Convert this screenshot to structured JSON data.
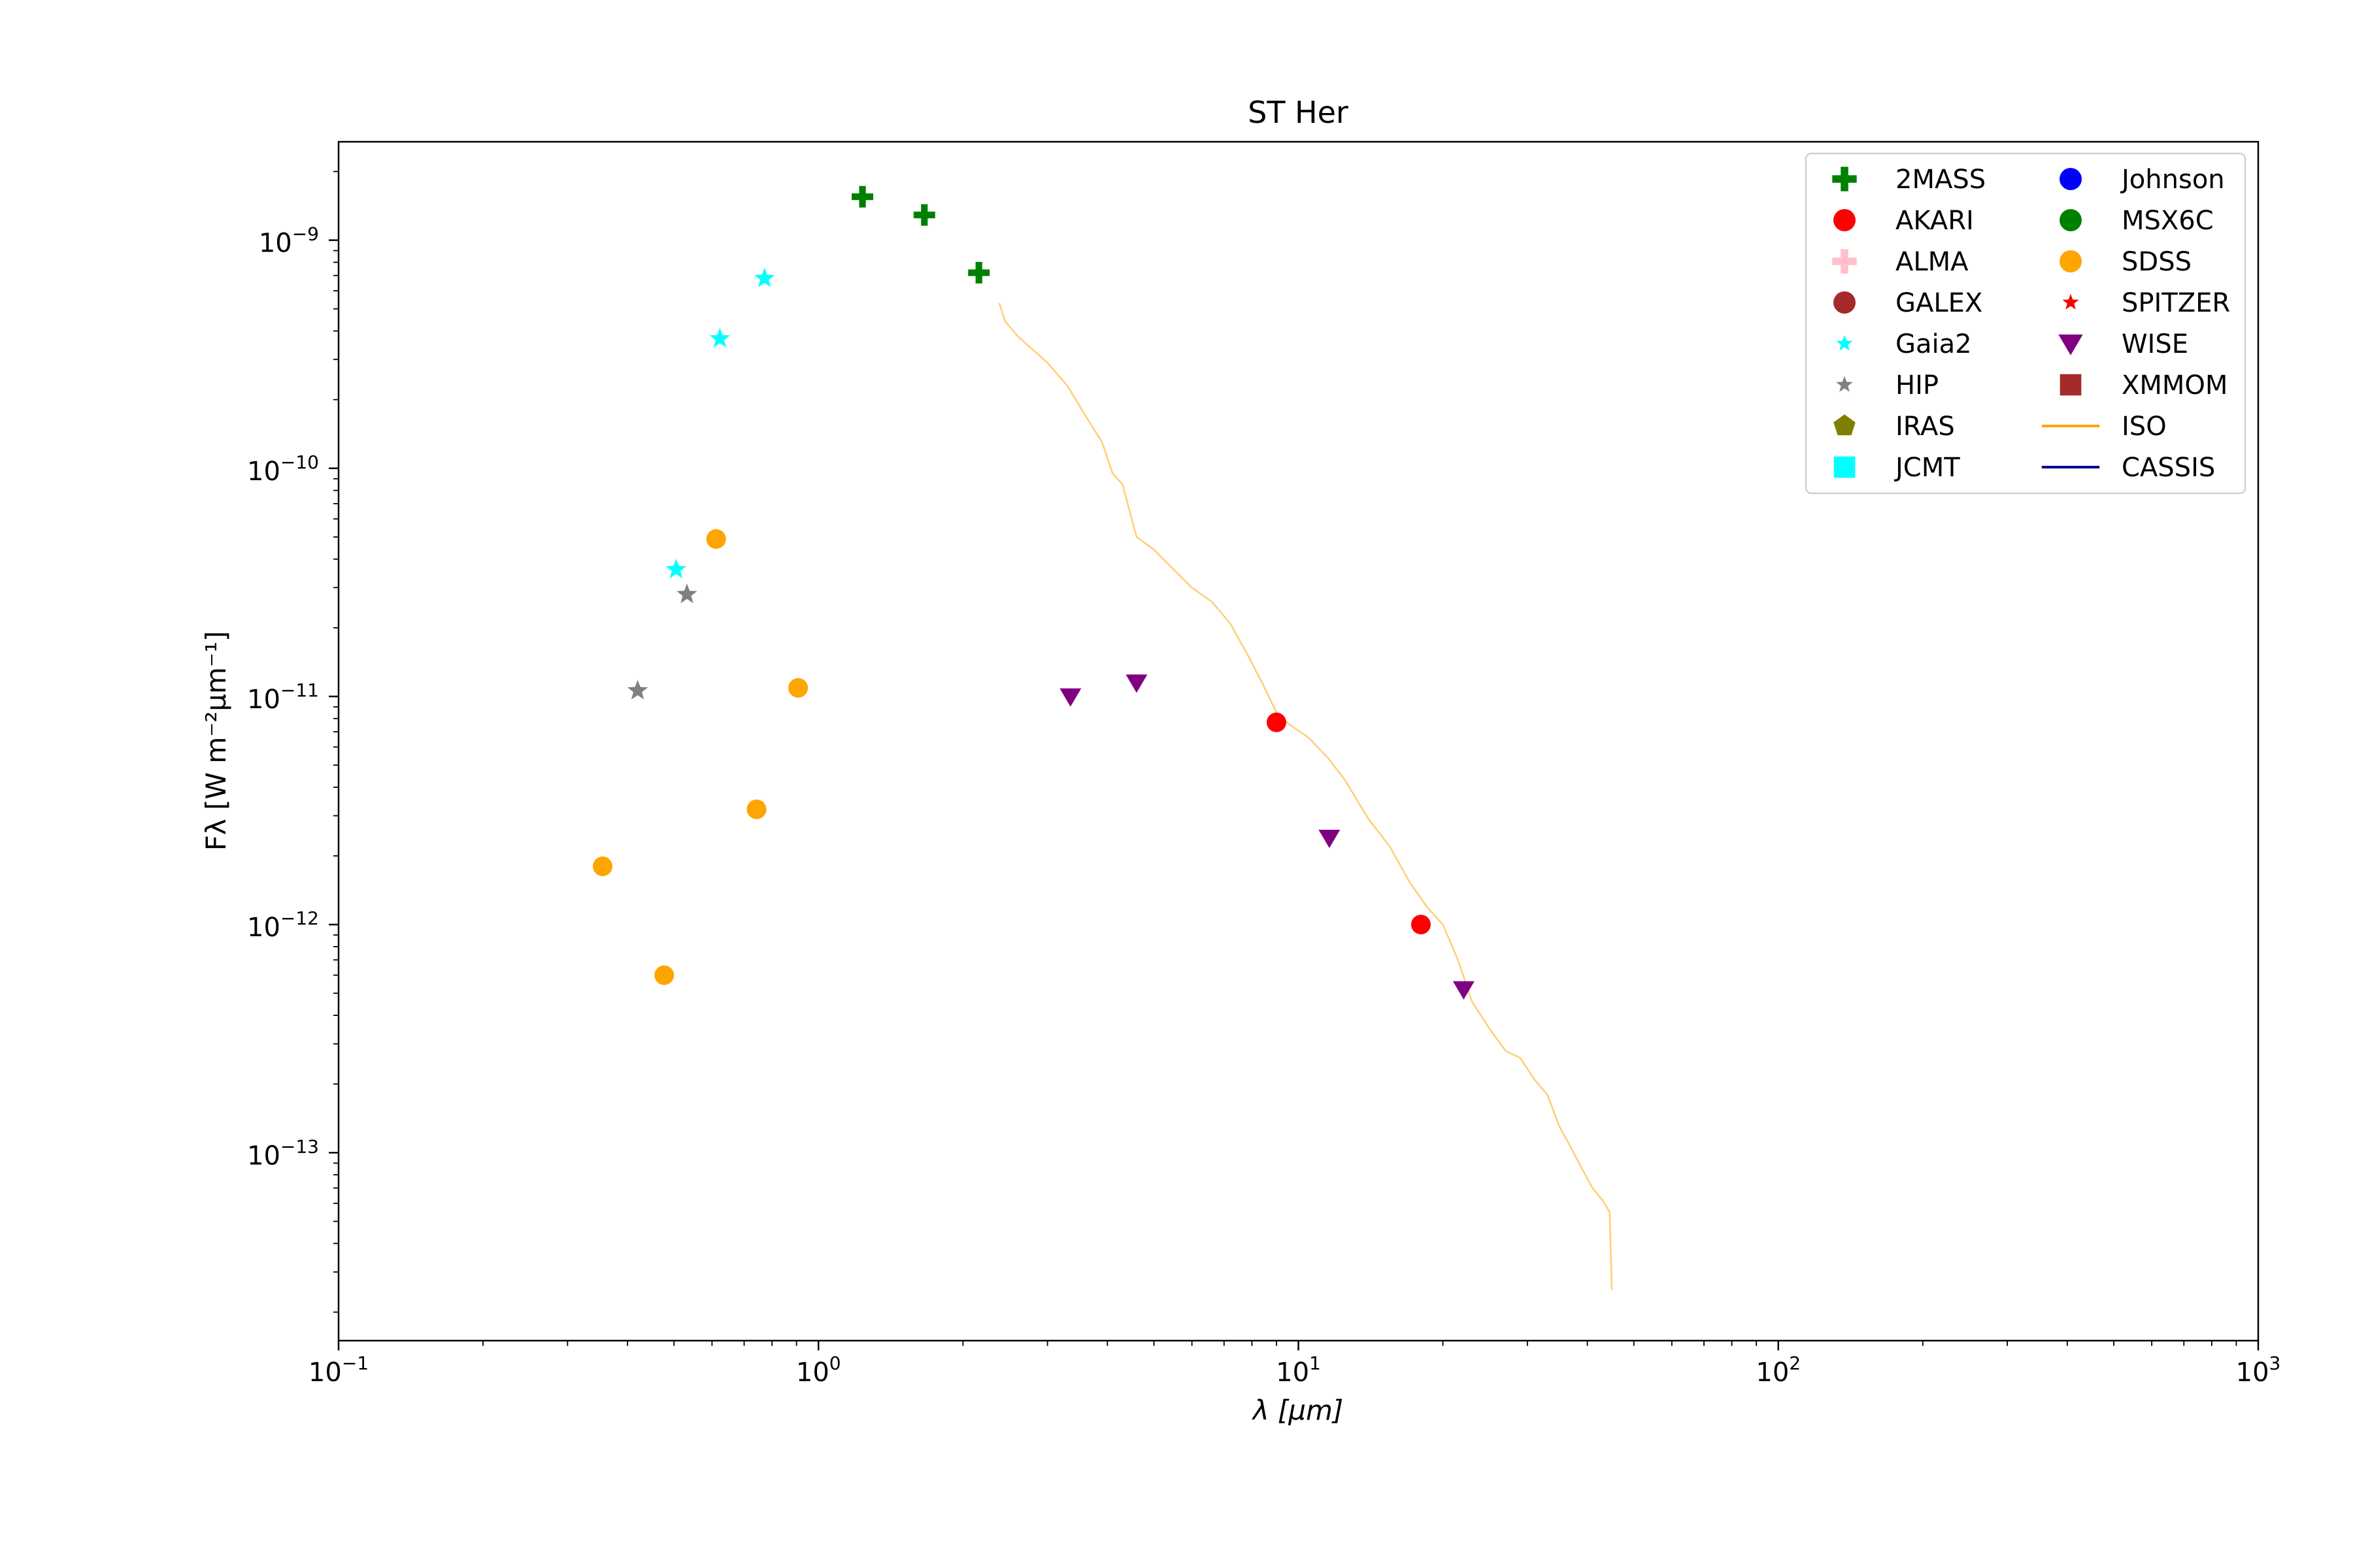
{
  "chart_data": {
    "type": "scatter",
    "title": "ST Her",
    "xlabel": "λ [μm]",
    "ylabel": "Fλ [W m⁻²μm⁻¹]",
    "xscale": "log",
    "yscale": "log",
    "xlim": [
      0.1,
      1000
    ],
    "ylim": [
      1.5e-14,
      2.7e-09
    ],
    "x_ticks": [
      {
        "base": "10",
        "exp": "−1",
        "value": 0.1
      },
      {
        "base": "10",
        "exp": "0",
        "value": 1
      },
      {
        "base": "10",
        "exp": "1",
        "value": 10
      },
      {
        "base": "10",
        "exp": "2",
        "value": 100
      },
      {
        "base": "10",
        "exp": "3",
        "value": 1000
      }
    ],
    "y_ticks": [
      {
        "base": "10",
        "exp": "−13",
        "value": 1e-13
      },
      {
        "base": "10",
        "exp": "−12",
        "value": 1e-12
      },
      {
        "base": "10",
        "exp": "−11",
        "value": 1e-11
      },
      {
        "base": "10",
        "exp": "−10",
        "value": 1e-10
      },
      {
        "base": "10",
        "exp": "−9",
        "value": 1e-09
      }
    ],
    "grid": false,
    "legend": {
      "placement": "top-right",
      "columns": 2,
      "entries": [
        {
          "name": "2MASS",
          "marker": "plus",
          "color": "#008000"
        },
        {
          "name": "AKARI",
          "marker": "circle",
          "color": "#ff0000"
        },
        {
          "name": "ALMA",
          "marker": "plus",
          "color": "#ffc0cb"
        },
        {
          "name": "GALEX",
          "marker": "circle",
          "color": "#a52a2a"
        },
        {
          "name": "Gaia2",
          "marker": "star",
          "color": "#00ffff"
        },
        {
          "name": "HIP",
          "marker": "star",
          "color": "#808080"
        },
        {
          "name": "IRAS",
          "marker": "pentagon",
          "color": "#808000"
        },
        {
          "name": "JCMT",
          "marker": "square",
          "color": "#00ffff"
        },
        {
          "name": "Johnson",
          "marker": "circle",
          "color": "#0000ff"
        },
        {
          "name": "MSX6C",
          "marker": "circle",
          "color": "#008000"
        },
        {
          "name": "SDSS",
          "marker": "circle",
          "color": "#ffa500"
        },
        {
          "name": "SPITZER",
          "marker": "star",
          "color": "#ff0000"
        },
        {
          "name": "WISE",
          "marker": "triangle-down",
          "color": "#800080"
        },
        {
          "name": "XMMOM",
          "marker": "square",
          "color": "#a52a2a"
        },
        {
          "name": "ISO",
          "marker": "line",
          "color": "#ffa500"
        },
        {
          "name": "CASSIS",
          "marker": "line",
          "color": "#00008b"
        }
      ]
    },
    "series": [
      {
        "name": "2MASS",
        "marker": "plus",
        "color": "#008000",
        "points": [
          {
            "x": 1.235,
            "y": 1.55e-09
          },
          {
            "x": 1.662,
            "y": 1.29e-09
          },
          {
            "x": 2.159,
            "y": 7.2e-10
          }
        ]
      },
      {
        "name": "AKARI",
        "marker": "circle",
        "color": "#ff0000",
        "points": [
          {
            "x": 9.0,
            "y": 7.7e-12
          },
          {
            "x": 18.0,
            "y": 1e-12
          }
        ]
      },
      {
        "name": "Gaia2",
        "marker": "star",
        "color": "#00ffff",
        "points": [
          {
            "x": 0.505,
            "y": 3.6e-11
          },
          {
            "x": 0.623,
            "y": 3.7e-10
          },
          {
            "x": 0.772,
            "y": 6.8e-10
          }
        ]
      },
      {
        "name": "HIP",
        "marker": "star",
        "color": "#808080",
        "points": [
          {
            "x": 0.42,
            "y": 1.06e-11
          },
          {
            "x": 0.532,
            "y": 2.8e-11
          }
        ]
      },
      {
        "name": "SDSS",
        "marker": "circle",
        "color": "#ffa500",
        "points": [
          {
            "x": 0.355,
            "y": 1.8e-12
          },
          {
            "x": 0.477,
            "y": 6e-13
          },
          {
            "x": 0.612,
            "y": 4.9e-11
          },
          {
            "x": 0.743,
            "y": 3.2e-12
          },
          {
            "x": 0.907,
            "y": 1.09e-11
          }
        ]
      },
      {
        "name": "WISE",
        "marker": "triangle-down",
        "color": "#800080",
        "points": [
          {
            "x": 3.35,
            "y": 1e-11
          },
          {
            "x": 4.6,
            "y": 1.15e-11
          },
          {
            "x": 11.6,
            "y": 2.4e-12
          },
          {
            "x": 22.1,
            "y": 5.2e-13
          }
        ]
      },
      {
        "name": "ISO",
        "marker": "line",
        "color": "#ffa500",
        "points": [
          {
            "x": 2.38,
            "y": 5.3e-10
          },
          {
            "x": 2.45,
            "y": 4.4e-10
          },
          {
            "x": 2.6,
            "y": 3.8e-10
          },
          {
            "x": 2.8,
            "y": 3.3e-10
          },
          {
            "x": 3.0,
            "y": 2.9e-10
          },
          {
            "x": 3.3,
            "y": 2.3e-10
          },
          {
            "x": 3.6,
            "y": 1.7e-10
          },
          {
            "x": 3.9,
            "y": 1.3e-10
          },
          {
            "x": 4.1,
            "y": 9.5e-11
          },
          {
            "x": 4.3,
            "y": 8.5e-11
          },
          {
            "x": 4.6,
            "y": 5e-11
          },
          {
            "x": 5.0,
            "y": 4.4e-11
          },
          {
            "x": 5.5,
            "y": 3.6e-11
          },
          {
            "x": 6.0,
            "y": 3e-11
          },
          {
            "x": 6.6,
            "y": 2.6e-11
          },
          {
            "x": 7.2,
            "y": 2.1e-11
          },
          {
            "x": 7.8,
            "y": 1.55e-11
          },
          {
            "x": 8.4,
            "y": 1.15e-11
          },
          {
            "x": 9.0,
            "y": 8.5e-12
          },
          {
            "x": 9.6,
            "y": 7.5e-12
          },
          {
            "x": 10.5,
            "y": 6.6e-12
          },
          {
            "x": 11.5,
            "y": 5.4e-12
          },
          {
            "x": 12.5,
            "y": 4.3e-12
          },
          {
            "x": 14.0,
            "y": 2.9e-12
          },
          {
            "x": 15.5,
            "y": 2.2e-12
          },
          {
            "x": 17.0,
            "y": 1.55e-12
          },
          {
            "x": 18.5,
            "y": 1.2e-12
          },
          {
            "x": 20.0,
            "y": 1e-12
          },
          {
            "x": 21.5,
            "y": 7e-13
          },
          {
            "x": 23.0,
            "y": 4.6e-13
          },
          {
            "x": 25.0,
            "y": 3.5e-13
          },
          {
            "x": 27.0,
            "y": 2.8e-13
          },
          {
            "x": 29.0,
            "y": 2.6e-13
          },
          {
            "x": 31.0,
            "y": 2.1e-13
          },
          {
            "x": 33.0,
            "y": 1.8e-13
          },
          {
            "x": 35.0,
            "y": 1.3e-13
          },
          {
            "x": 37.0,
            "y": 1.05e-13
          },
          {
            "x": 39.0,
            "y": 8.5e-14
          },
          {
            "x": 41.0,
            "y": 7e-14
          },
          {
            "x": 43.0,
            "y": 6.2e-14
          },
          {
            "x": 44.5,
            "y": 5.5e-14
          },
          {
            "x": 45.0,
            "y": 2.5e-14
          }
        ]
      }
    ]
  }
}
